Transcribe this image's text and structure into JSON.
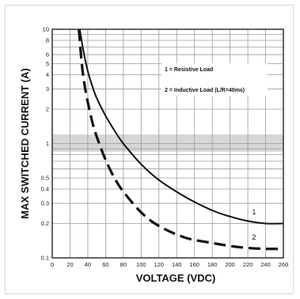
{
  "chart_data": {
    "type": "line",
    "xlabel": "VOLTAGE (VDC)",
    "ylabel": "MAX SWITCHED CURRENT (A)",
    "y_scale": "log",
    "xlim": [
      0,
      260
    ],
    "ylim": [
      0.1,
      10
    ],
    "grid": true,
    "x_ticks": [
      0,
      20,
      40,
      60,
      80,
      100,
      120,
      140,
      160,
      180,
      200,
      220,
      240,
      260
    ],
    "x_tick_labels": [
      "0",
      "20",
      "40",
      "60",
      "80",
      "100",
      "120",
      "140",
      "160",
      "180",
      "200",
      "220",
      "240",
      "260"
    ],
    "y_ticks": [
      0.1,
      0.2,
      0.3,
      0.4,
      0.5,
      1,
      2,
      3,
      4,
      5,
      6,
      8,
      10
    ],
    "y_tick_labels": [
      "0.1",
      "0.2",
      "0.3",
      "0.4",
      "0.5",
      "1",
      "2",
      "3",
      "4",
      "5",
      "6",
      "8",
      "10"
    ],
    "highlight_band": {
      "y_from": 0.85,
      "y_to": 1.2,
      "color": "#d6d6d6"
    },
    "legend": {
      "placement": "top-right",
      "entries": [
        "1 = Resistive Load",
        "2 = Inductive Load (L/R=40ms)"
      ]
    },
    "series": [
      {
        "name": "1",
        "style": "solid",
        "color": "#111111",
        "x": [
          31,
          35,
          40,
          45,
          50,
          60,
          70,
          80,
          100,
          120,
          150,
          180,
          200,
          220,
          240,
          260
        ],
        "y": [
          10,
          6.5,
          4.3,
          3.2,
          2.5,
          1.75,
          1.3,
          1.0,
          0.66,
          0.48,
          0.34,
          0.26,
          0.23,
          0.21,
          0.2,
          0.2
        ]
      },
      {
        "name": "2",
        "style": "dashed",
        "color": "#111111",
        "x": [
          30,
          33,
          36,
          40,
          45,
          50,
          60,
          70,
          80,
          100,
          120,
          150,
          180,
          200,
          220,
          240,
          260
        ],
        "y": [
          10,
          5.2,
          3.4,
          2.3,
          1.55,
          1.15,
          0.72,
          0.5,
          0.38,
          0.25,
          0.19,
          0.15,
          0.135,
          0.127,
          0.122,
          0.12,
          0.12
        ]
      }
    ],
    "curve_labels": [
      {
        "series": "1",
        "text": "1",
        "x": 227,
        "y": 0.24
      },
      {
        "series": "2",
        "text": "2",
        "x": 227,
        "y": 0.144
      }
    ]
  }
}
